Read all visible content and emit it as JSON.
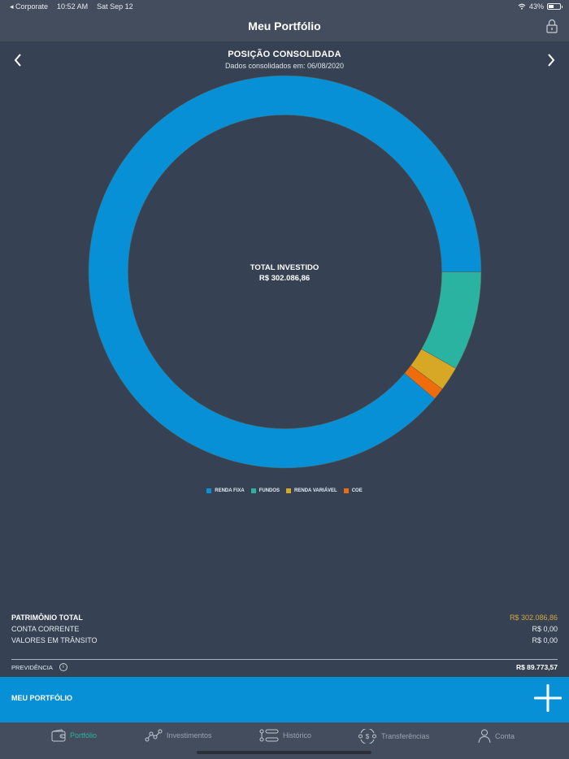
{
  "status_bar": {
    "back_app": "◂ Corporate",
    "time": "10:52 AM",
    "date": "Sat Sep 12",
    "battery": "43%"
  },
  "nav": {
    "title": "Meu Portfólio",
    "lock_icon": "lock-icon"
  },
  "header": {
    "title": "POSIÇÃO CONSOLIDADA",
    "subtitle": "Dados consolidados em: 06/08/2020",
    "prev_icon": "chevron-left-icon",
    "next_icon": "chevron-right-icon"
  },
  "donut": {
    "center_label": "TOTAL INVESTIDO",
    "center_value": "R$  302.086,86"
  },
  "chart_data": {
    "type": "pie",
    "subtype": "donut",
    "title": "POSIÇÃO CONSOLIDADA",
    "center_label": "TOTAL INVESTIDO",
    "center_value": "R$ 302.086,86",
    "categories": [
      "RENDA FIXA",
      "FUNDOS",
      "RENDA VARIÁVEL",
      "COE"
    ],
    "values": [
      88.9,
      8.2,
      2.0,
      1.0
    ],
    "unit": "%",
    "colors": [
      "#0890d6",
      "#2ab3a1",
      "#d7a825",
      "#ef6c0c"
    ],
    "legend_position": "bottom"
  },
  "legend": [
    {
      "label": "RENDA FIXA",
      "color": "#0890d6"
    },
    {
      "label": "FUNDOS",
      "color": "#2ab3a1"
    },
    {
      "label": "RENDA VARIÁVEL",
      "color": "#d7a825"
    },
    {
      "label": "COE",
      "color": "#ef6c0c"
    }
  ],
  "summary": {
    "total_label": "PATRIMÔNIO TOTAL",
    "total_value": "R$ 302.086,86",
    "rows": [
      {
        "label": "CONTA CORRENTE",
        "value": "R$ 0,00"
      },
      {
        "label": "VALORES EM TRÂNSITO",
        "value": "R$ 0,00"
      }
    ],
    "previdencia_label": "PREVIDÊNCIA",
    "previdencia_info": "i",
    "previdencia_value": "R$ 89.773,57"
  },
  "portfolio_bar": {
    "label": "MEU PORTFÓLIO",
    "add_icon": "plus-icon"
  },
  "tabs": [
    {
      "label": "Portfólio",
      "icon": "wallet-icon",
      "active": true
    },
    {
      "label": "Investimentos",
      "icon": "chart-line-icon",
      "active": false
    },
    {
      "label": "Histórico",
      "icon": "list-icon",
      "active": false
    },
    {
      "label": "Transferências",
      "icon": "transfer-icon",
      "active": false
    },
    {
      "label": "Conta",
      "icon": "user-icon",
      "active": false
    }
  ],
  "colors": {
    "background": "#364254",
    "bar": "#434d5e",
    "accent_blue": "#0890d6",
    "active_tab": "#2bb3a0",
    "total_value": "#d4a83a"
  }
}
